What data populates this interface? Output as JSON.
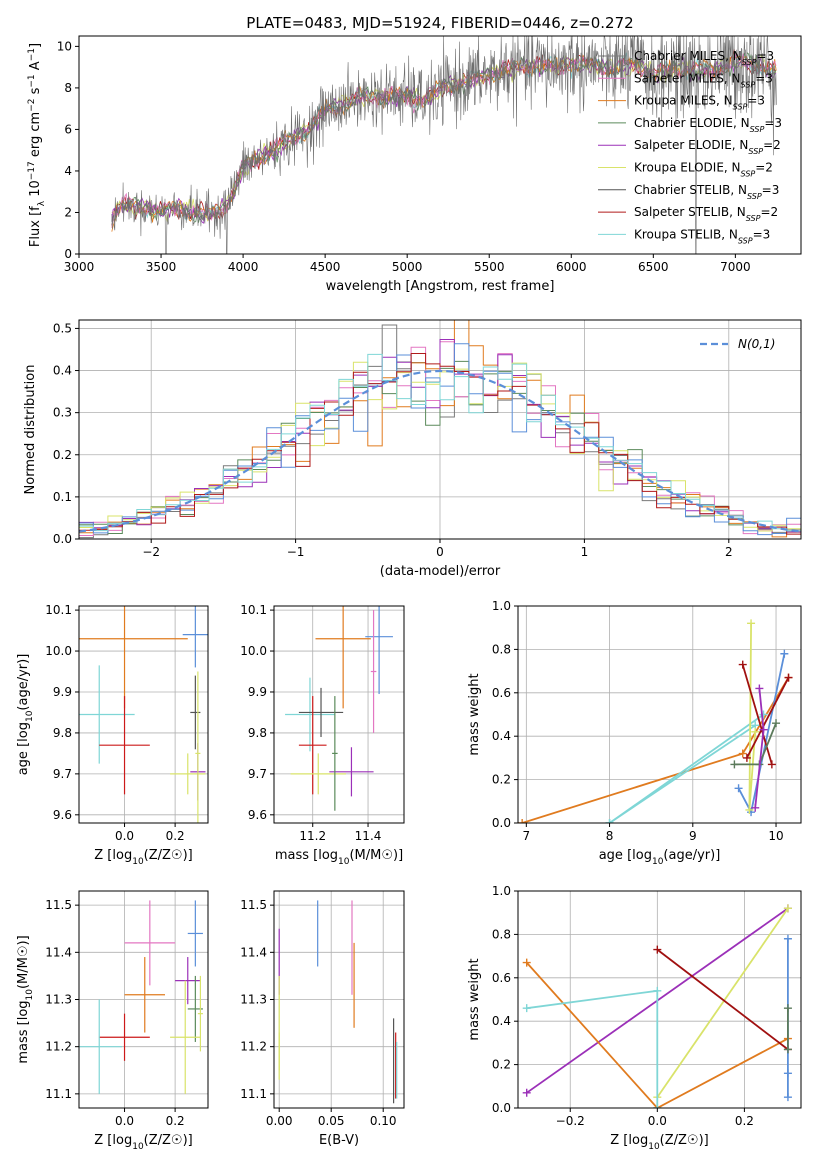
{
  "figure": {
    "title": "PLATE=0483, MJD=51924, FIBERID=0446, z=0.272"
  },
  "palette": {
    "Chabrier MILES": "#7a7a7a",
    "Salpeter MILES": "#e377c2",
    "Kroupa MILES": "#e07b1f",
    "Chabrier ELODIE": "#5b8a5b",
    "Salpeter ELODIE": "#9b30b8",
    "Kroupa ELODIE": "#d9e36a",
    "Chabrier STELIB": "#555555",
    "Salpeter STELIB": "#b01a1a",
    "Kroupa STELIB": "#7fd6d6",
    "blue": "#5b8fd9",
    "orange": "#e07b1f",
    "darkgreen": "#5b7a5b",
    "red": "#cc1a1a",
    "darkred": "#a01010"
  },
  "chart_data": [
    {
      "id": "spectrum",
      "type": "line",
      "xlabel": "wavelength [Angstrom, rest frame]",
      "ylabel": "Flux [f_λ 10^-17 erg cm^-2 s^-1 A^-1]",
      "xlim": [
        3000,
        7400
      ],
      "ylim": [
        0,
        10.5
      ],
      "xticks": [
        3000,
        3500,
        4000,
        4500,
        5000,
        5500,
        6000,
        6500,
        7000
      ],
      "yticks": [
        0,
        2,
        4,
        6,
        8,
        10
      ],
      "legend_position": "top-right",
      "legend": [
        {
          "label": "Chabrier MILES, N",
          "sub": "SSP",
          "tail": "=3",
          "color_key": "Chabrier MILES"
        },
        {
          "label": "Salpeter MILES, N",
          "sub": "SSP",
          "tail": "=3",
          "color_key": "Salpeter MILES"
        },
        {
          "label": "Kroupa MILES, N",
          "sub": "SSP",
          "tail": "=3",
          "color_key": "Kroupa MILES"
        },
        {
          "label": "Chabrier ELODIE, N",
          "sub": "SSP",
          "tail": "=3",
          "color_key": "Chabrier ELODIE"
        },
        {
          "label": "Salpeter ELODIE, N",
          "sub": "SSP",
          "tail": "=2",
          "color_key": "Salpeter ELODIE"
        },
        {
          "label": "Kroupa ELODIE, N",
          "sub": "SSP",
          "tail": "=2",
          "color_key": "Kroupa ELODIE"
        },
        {
          "label": "Chabrier STELIB, N",
          "sub": "SSP",
          "tail": "=3",
          "color_key": "Chabrier STELIB"
        },
        {
          "label": "Salpeter STELIB, N",
          "sub": "SSP",
          "tail": "=2",
          "color_key": "Salpeter STELIB"
        },
        {
          "label": "Kroupa STELIB, N",
          "sub": "SSP",
          "tail": "=3",
          "color_key": "Kroupa STELIB"
        }
      ],
      "continuum": {
        "x": [
          3200,
          3260,
          3300,
          3400,
          3500,
          3600,
          3700,
          3800,
          3900,
          3950,
          4000,
          4100,
          4200,
          4300,
          4400,
          4500,
          4600,
          4700,
          4800,
          4900,
          5000,
          5100,
          5200,
          5300,
          5400,
          5500,
          5600,
          5700,
          5800,
          5900,
          6000,
          6100,
          6200,
          6300,
          6400,
          6500,
          6600,
          6700,
          6800,
          6900,
          7000,
          7100,
          7200,
          7250
        ],
        "y": [
          1.7,
          2.4,
          2.3,
          2.2,
          2.1,
          2.2,
          2.0,
          1.9,
          2.3,
          3.2,
          4.2,
          4.6,
          5.1,
          5.5,
          6.0,
          6.9,
          7.2,
          7.5,
          7.6,
          7.6,
          7.6,
          7.4,
          7.9,
          8.2,
          8.4,
          8.6,
          8.9,
          9.0,
          9.1,
          9.0,
          9.2,
          9.1,
          9.0,
          9.0,
          9.1,
          8.7,
          8.9,
          8.9,
          8.8,
          8.9,
          9.3,
          9.2,
          8.9,
          8.8
        ]
      },
      "noise_amplitude": 1.2,
      "dips": [
        {
          "x": 3530,
          "y": 0
        },
        {
          "x": 3900,
          "y": 0
        },
        {
          "x": 5180,
          "y": 6.5
        },
        {
          "x": 6760,
          "y": 0
        }
      ]
    },
    {
      "id": "residuals",
      "type": "area",
      "xlabel": "(data-model)/error",
      "ylabel": "Normed distribution",
      "xlim": [
        -2.5,
        2.5
      ],
      "ylim": [
        0,
        0.52
      ],
      "xticks": [
        -2,
        -1,
        0,
        1,
        2
      ],
      "xtick_labels": [
        "−2",
        "−1",
        "0",
        "1",
        "2"
      ],
      "yticks": [
        0.0,
        0.1,
        0.2,
        0.3,
        0.4,
        0.5
      ],
      "bin_width": 0.1,
      "n_histograms": 9,
      "gaussian_label": "N(0,1)",
      "legend_position": "top-right"
    },
    {
      "id": "age_vs_Z",
      "type": "scatter",
      "xlabel": "Z [log10(Z/Z☉)]",
      "ylabel": "age  [log10(age/yr)]",
      "xlim": [
        -0.18,
        0.33
      ],
      "ylim": [
        9.58,
        10.11
      ],
      "xticks": [
        0.0,
        0.2
      ],
      "yticks": [
        9.6,
        9.7,
        9.8,
        9.9,
        10.0,
        10.1
      ],
      "points": [
        {
          "x": 0.0,
          "y": 10.03,
          "xerr": 0.25,
          "yerr": 0.17,
          "color_key": "orange"
        },
        {
          "x": 0.28,
          "y": 10.04,
          "xerr": 0.05,
          "yerr": 0.08,
          "color_key": "blue"
        },
        {
          "x": -0.1,
          "y": 9.845,
          "xerr": 0.14,
          "yerr": 0.12,
          "color_key": "Kroupa STELIB"
        },
        {
          "x": 0.28,
          "y": 9.85,
          "xerr": 0.02,
          "yerr": 0.09,
          "color_key": "Chabrier STELIB"
        },
        {
          "x": 0.0,
          "y": 9.77,
          "xerr": 0.1,
          "yerr": 0.12,
          "color_key": "red"
        },
        {
          "x": 0.25,
          "y": 9.7,
          "xerr": 0.07,
          "yerr": 0.05,
          "color_key": "Kroupa ELODIE"
        },
        {
          "x": 0.29,
          "y": 9.705,
          "xerr": 0.03,
          "yerr": 0.07,
          "color_key": "Salpeter ELODIE"
        },
        {
          "x": 0.29,
          "y": 9.75,
          "xerr": 0.01,
          "yerr": 0.2,
          "color_key": "Kroupa ELODIE"
        }
      ]
    },
    {
      "id": "age_vs_mass",
      "type": "scatter",
      "xlabel": "mass [log10(M/M☉)]",
      "ylabel": "",
      "xlim": [
        11.06,
        11.53
      ],
      "ylim": [
        9.58,
        10.11
      ],
      "xticks": [
        11.2,
        11.4
      ],
      "yticks": [
        9.6,
        9.7,
        9.8,
        9.9,
        10.0,
        10.1
      ],
      "points": [
        {
          "x": 11.31,
          "y": 10.03,
          "xerr": 0.1,
          "yerr": 0.17,
          "color_key": "orange"
        },
        {
          "x": 11.44,
          "y": 10.035,
          "xerr": 0.05,
          "yerr": 0.14,
          "color_key": "blue"
        },
        {
          "x": 11.42,
          "y": 9.95,
          "xerr": 0.01,
          "yerr": 0.15,
          "color_key": "Salpeter MILES"
        },
        {
          "x": 11.19,
          "y": 9.845,
          "xerr": 0.09,
          "yerr": 0.09,
          "color_key": "Kroupa STELIB"
        },
        {
          "x": 11.23,
          "y": 9.85,
          "xerr": 0.08,
          "yerr": 0.06,
          "color_key": "Chabrier STELIB"
        },
        {
          "x": 11.2,
          "y": 9.77,
          "xerr": 0.05,
          "yerr": 0.12,
          "color_key": "red"
        },
        {
          "x": 11.22,
          "y": 9.7,
          "xerr": 0.1,
          "yerr": 0.05,
          "color_key": "Kroupa ELODIE"
        },
        {
          "x": 11.34,
          "y": 9.705,
          "xerr": 0.08,
          "yerr": 0.06,
          "color_key": "Salpeter ELODIE"
        },
        {
          "x": 11.28,
          "y": 9.75,
          "xerr": 0.01,
          "yerr": 0.14,
          "color_key": "Chabrier ELODIE"
        }
      ]
    },
    {
      "id": "massweight_vs_age",
      "type": "line",
      "xlabel": "age  [log10(age/yr)]",
      "ylabel": "mass weight",
      "xlim": [
        6.9,
        10.3
      ],
      "ylim": [
        0.0,
        1.0
      ],
      "xticks": [
        7,
        8,
        9,
        10
      ],
      "yticks": [
        0.0,
        0.2,
        0.4,
        0.6,
        0.8,
        1.0
      ],
      "series": [
        {
          "color_key": "orange",
          "x": [
            6.95,
            9.6,
            10.15
          ],
          "y": [
            0.0,
            0.32,
            0.67
          ]
        },
        {
          "color_key": "Kroupa STELIB",
          "x": [
            8.0,
            9.85
          ],
          "y": [
            0.0,
            0.5
          ]
        },
        {
          "color_key": "Kroupa STELIB",
          "x": [
            8.0,
            9.75
          ],
          "y": [
            0.0,
            0.45
          ]
        },
        {
          "color_key": "blue",
          "x": [
            9.55,
            9.7,
            10.1
          ],
          "y": [
            0.16,
            0.05,
            0.78
          ]
        },
        {
          "color_key": "Kroupa ELODIE",
          "x": [
            9.7,
            9.68,
            9.75
          ],
          "y": [
            0.92,
            0.06,
            0.42
          ]
        },
        {
          "color_key": "darkred",
          "x": [
            9.6,
            9.95
          ],
          "y": [
            0.73,
            0.27
          ]
        },
        {
          "color_key": "darkred",
          "x": [
            9.65,
            10.15
          ],
          "y": [
            0.3,
            0.67
          ]
        },
        {
          "color_key": "darkgreen",
          "x": [
            9.5,
            9.8,
            10.0
          ],
          "y": [
            0.27,
            0.27,
            0.46
          ]
        },
        {
          "color_key": "Salpeter ELODIE",
          "x": [
            9.75,
            9.85,
            9.8
          ],
          "y": [
            0.07,
            0.43,
            0.62
          ]
        }
      ]
    },
    {
      "id": "mass_vs_Z",
      "type": "scatter",
      "xlabel": "Z [log10(Z/Z☉)]",
      "ylabel": "mass [log10(M/M☉)]",
      "xlim": [
        -0.18,
        0.33
      ],
      "ylim": [
        11.07,
        11.53
      ],
      "xticks": [
        0.0,
        0.2
      ],
      "yticks": [
        11.1,
        11.2,
        11.3,
        11.4,
        11.5
      ],
      "points": [
        {
          "x": 0.1,
          "y": 11.42,
          "xerr": 0.1,
          "yerr": 0.09,
          "color_key": "Salpeter MILES"
        },
        {
          "x": 0.28,
          "y": 11.44,
          "xerr": 0.03,
          "yerr": 0.07,
          "color_key": "blue"
        },
        {
          "x": 0.08,
          "y": 11.31,
          "xerr": 0.08,
          "yerr": 0.08,
          "color_key": "orange"
        },
        {
          "x": 0.25,
          "y": 11.34,
          "xerr": 0.05,
          "yerr": 0.05,
          "color_key": "Salpeter ELODIE"
        },
        {
          "x": 0.28,
          "y": 11.28,
          "xerr": 0.03,
          "yerr": 0.07,
          "color_key": "Chabrier ELODIE"
        },
        {
          "x": 0.0,
          "y": 11.22,
          "xerr": 0.1,
          "yerr": 0.05,
          "color_key": "red"
        },
        {
          "x": -0.1,
          "y": 11.2,
          "xerr": 0.09,
          "yerr": 0.1,
          "color_key": "Kroupa STELIB"
        },
        {
          "x": 0.24,
          "y": 11.22,
          "xerr": 0.06,
          "yerr": 0.12,
          "color_key": "Kroupa ELODIE"
        },
        {
          "x": 0.3,
          "y": 11.27,
          "xerr": 0.01,
          "yerr": 0.08,
          "color_key": "Kroupa ELODIE"
        }
      ]
    },
    {
      "id": "mass_vs_EBV",
      "type": "scatter",
      "xlabel": "E(B-V)",
      "ylabel": "",
      "xlim": [
        -0.005,
        0.12
      ],
      "ylim": [
        11.07,
        11.53
      ],
      "xticks": [
        0.0,
        0.05,
        0.1
      ],
      "xtick_labels": [
        "0.00",
        "0.05",
        "0.10"
      ],
      "yticks": [
        11.1,
        11.2,
        11.3,
        11.4,
        11.5
      ],
      "points": [
        {
          "x": 0.0,
          "y": 11.38,
          "xerr": 0.0,
          "yerr": 0.07,
          "color_key": "Salpeter ELODIE"
        },
        {
          "x": 0.0,
          "y": 11.25,
          "xerr": 0.0,
          "yerr": 0.1,
          "color_key": "Kroupa ELODIE"
        },
        {
          "x": 0.0,
          "y": 11.18,
          "xerr": 0.0,
          "yerr": 0.05,
          "color_key": "Kroupa ELODIE"
        },
        {
          "x": 0.037,
          "y": 11.44,
          "xerr": 0.0,
          "yerr": 0.07,
          "color_key": "blue"
        },
        {
          "x": 0.07,
          "y": 11.41,
          "xerr": 0.0,
          "yerr": 0.1,
          "color_key": "Salpeter MILES"
        },
        {
          "x": 0.072,
          "y": 11.33,
          "xerr": 0.0,
          "yerr": 0.09,
          "color_key": "orange"
        },
        {
          "x": 0.11,
          "y": 11.17,
          "xerr": 0.0,
          "yerr": 0.09,
          "color_key": "Chabrier STELIB"
        },
        {
          "x": 0.112,
          "y": 11.16,
          "xerr": 0.0,
          "yerr": 0.07,
          "color_key": "red"
        },
        {
          "x": 0.113,
          "y": 11.15,
          "xerr": 0.0,
          "yerr": 0.06,
          "color_key": "Kroupa STELIB"
        }
      ]
    },
    {
      "id": "massweight_vs_Z",
      "type": "line",
      "xlabel": "Z [log10(Z/Z☉)]",
      "ylabel": "mass weight",
      "xlim": [
        -0.32,
        0.33
      ],
      "ylim": [
        0.0,
        1.0
      ],
      "xticks": [
        -0.2,
        0.0,
        0.2
      ],
      "xtick_labels": [
        "−0.2",
        "0.0",
        "0.2"
      ],
      "yticks": [
        0.0,
        0.2,
        0.4,
        0.6,
        0.8,
        1.0
      ],
      "series": [
        {
          "color_key": "Salpeter ELODIE",
          "x": [
            -0.3,
            0.3
          ],
          "y": [
            0.07,
            0.92
          ]
        },
        {
          "color_key": "Kroupa ELODIE",
          "x": [
            0.0,
            0.3
          ],
          "y": [
            0.05,
            0.92
          ]
        },
        {
          "color_key": "orange",
          "x": [
            -0.3,
            0.0,
            0.3
          ],
          "y": [
            0.67,
            0.0,
            0.32
          ]
        },
        {
          "color_key": "darkred",
          "x": [
            0.0,
            0.3
          ],
          "y": [
            0.73,
            0.27
          ]
        },
        {
          "color_key": "Kroupa STELIB",
          "x": [
            -0.3,
            0.0,
            0.0
          ],
          "y": [
            0.46,
            0.54,
            0.0
          ]
        },
        {
          "color_key": "blue",
          "x": [
            0.3,
            0.3,
            0.3
          ],
          "y": [
            0.05,
            0.16,
            0.78
          ]
        },
        {
          "color_key": "darkgreen",
          "x": [
            0.3,
            0.3
          ],
          "y": [
            0.27,
            0.46
          ]
        }
      ]
    }
  ]
}
